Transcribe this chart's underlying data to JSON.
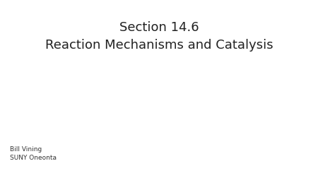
{
  "title_line1": "Section 14.6",
  "title_line2": "Reaction Mechanisms and Catalysis",
  "title_color": "#222222",
  "title_fontsize": 13,
  "credit_line1": "Bill Vining",
  "credit_line2": "SUNY Oneonta",
  "credit_fontsize": 6.5,
  "credit_color": "#333333",
  "background_color": "#ffffff"
}
